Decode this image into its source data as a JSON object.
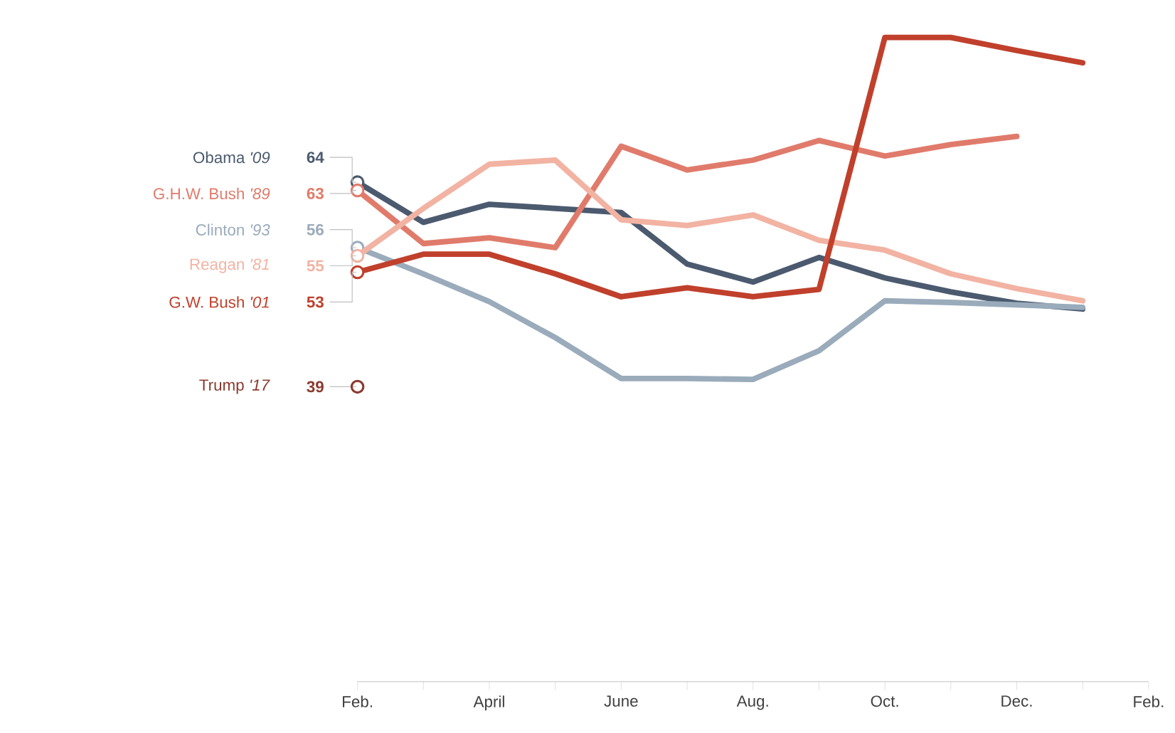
{
  "chart_data": {
    "type": "line",
    "tick_labels": "x",
    "categories": [
      "Feb.",
      null,
      "April",
      null,
      "June",
      null,
      "Aug.",
      null,
      "Oct.",
      null,
      "Dec.",
      null,
      "Feb."
    ],
    "series": [
      {
        "name": "Obama *'09*",
        "color": "#4b5a6e",
        "values": [
          64,
          59.1,
          61.3,
          60.8,
          60.3,
          54,
          51.8,
          54.8,
          52.3,
          50.6,
          49.2,
          48.5,
          null
        ],
        "value_labels": [
          "64",
          null,
          null,
          null,
          null,
          null,
          null,
          null,
          null,
          null,
          null,
          null,
          null
        ]
      },
      {
        "name": "G.H.W. Bush *'89*",
        "color": "#e07b6b",
        "values": [
          63,
          56.5,
          57.2,
          56,
          68.4,
          65.5,
          66.7,
          69.1,
          67.2,
          68.6,
          69.6,
          null,
          null
        ],
        "value_labels": [
          "63",
          null,
          null,
          null,
          null,
          null,
          null,
          null,
          null,
          null,
          null,
          null,
          null
        ]
      },
      {
        "name": "Clinton *'93*",
        "color": "#9aabbb",
        "values": [
          56,
          52.8,
          49.4,
          45,
          40,
          40,
          39.9,
          43.4,
          49.5,
          49.3,
          49,
          48.7,
          null
        ],
        "value_labels": [
          "56",
          null,
          null,
          null,
          null,
          null,
          null,
          null,
          null,
          null,
          null,
          null,
          null
        ]
      },
      {
        "name": "Reagan *'81*",
        "color": "#f2b3a3",
        "values": [
          55,
          60.8,
          66.2,
          66.7,
          59.4,
          58.7,
          60,
          56.9,
          55.7,
          52.8,
          51,
          49.5,
          null
        ],
        "value_labels": [
          "55",
          null,
          null,
          null,
          null,
          null,
          null,
          null,
          null,
          null,
          null,
          null,
          null
        ]
      },
      {
        "name": "G.W. Bush *'01*",
        "color": "#c0402c",
        "values": [
          53,
          55.2,
          55.2,
          52.8,
          50,
          51.1,
          50,
          50.9,
          81.7,
          81.7,
          80.1,
          78.6,
          null
        ],
        "value_labels": [
          "53",
          null,
          null,
          null,
          null,
          null,
          null,
          null,
          null,
          null,
          null,
          null,
          null
        ]
      },
      {
        "name": "Trump *'17*",
        "color": "#8b3a2e",
        "marker": "circle",
        "values": [
          39,
          null,
          null,
          null,
          null,
          null,
          null,
          null,
          null,
          null,
          null,
          null,
          null
        ],
        "value_labels": [
          "39",
          null,
          null,
          null,
          null,
          null,
          null,
          null,
          null,
          null,
          null,
          null,
          null
        ]
      }
    ]
  }
}
